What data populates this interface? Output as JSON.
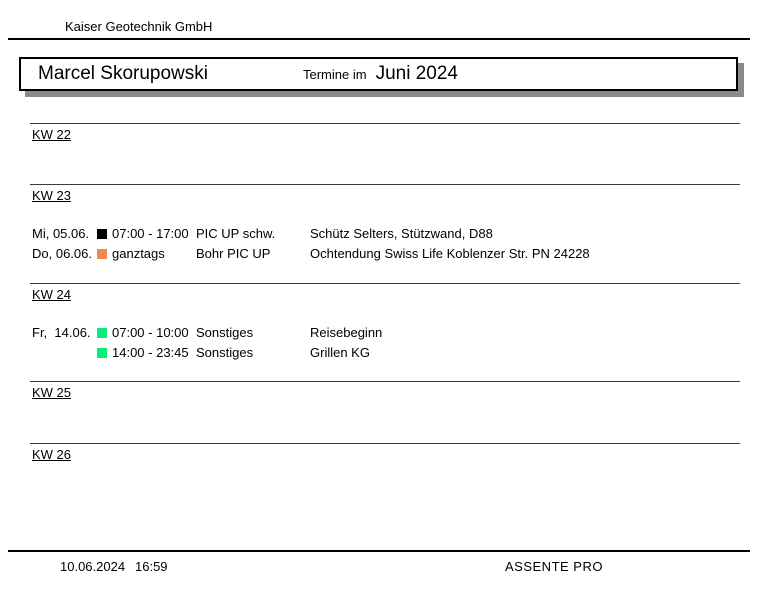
{
  "company": "Kaiser Geotechnik GmbH",
  "title": {
    "person": "Marcel Skorupowski",
    "prefix": "Termine im",
    "month": "Juni 2024"
  },
  "weeks": [
    {
      "label": "KW 22",
      "appointments": []
    },
    {
      "label": "KW 23",
      "appointments": [
        {
          "day": "Mi, 05.06.",
          "color": "#000000",
          "time": "07:00 - 17:00",
          "type": "PIC UP schw.",
          "description": "Schütz Selters, Stützwand, D88"
        },
        {
          "day": "Do, 06.06.",
          "color": "#F2884B",
          "time": "ganztags",
          "type": "Bohr PIC UP",
          "description": "Ochtendung Swiss Life Koblenzer Str. PN 24228"
        }
      ]
    },
    {
      "label": "KW 24",
      "appointments": [
        {
          "day": "Fr,  14.06.",
          "color": "#00F07E",
          "time": "07:00 - 10:00",
          "type": "Sonstiges",
          "description": "Reisebeginn"
        },
        {
          "day": "",
          "color": "#00F07E",
          "time": "14:00 - 23:45",
          "type": "Sonstiges",
          "description": "Grillen KG"
        }
      ]
    },
    {
      "label": "KW 25",
      "appointments": []
    },
    {
      "label": "KW 26",
      "appointments": []
    }
  ],
  "footer": {
    "date": "10.06.2024",
    "time": "16:59",
    "app": "ASSENTE PRO"
  }
}
